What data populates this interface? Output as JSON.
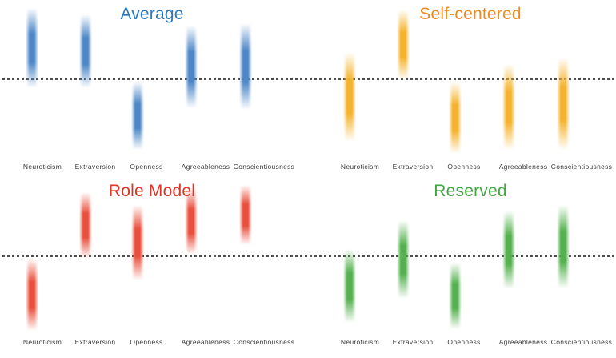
{
  "figure": {
    "background": "#ffffff",
    "baseline_line": {
      "style": "dotted",
      "color": "#4f4f4f",
      "value": 0
    },
    "traits": [
      "Neuroticism",
      "Extraversion",
      "Openness",
      "Agreeableness",
      "Conscientiousness"
    ]
  },
  "chart_data": [
    {
      "type": "bar",
      "title": "Average",
      "title_color": "#2b7abf",
      "bar_color": "#4d87c7",
      "categories": [
        "Neuroticism",
        "Extraversion",
        "Openness",
        "Agreeableness",
        "Conscientiousness"
      ],
      "series": [
        {
          "name": "trait-range",
          "intervals": [
            {
              "top": 89,
              "bottom": -11
            },
            {
              "top": 81,
              "bottom": -11
            },
            {
              "top": -3,
              "bottom": -88
            },
            {
              "top": 67,
              "bottom": -36
            },
            {
              "top": 70,
              "bottom": -38
            }
          ]
        }
      ],
      "ylim": [
        -100,
        100
      ],
      "baseline_value": 0,
      "grid": false,
      "legend": false
    },
    {
      "type": "bar",
      "title": "Self-centered",
      "title_color": "#ef8b22",
      "bar_color": "#f5b32d",
      "categories": [
        "Neuroticism",
        "Extraversion",
        "Openness",
        "Agreeableness",
        "Conscientiousness"
      ],
      "series": [
        {
          "name": "trait-range",
          "intervals": [
            {
              "top": 34,
              "bottom": -78
            },
            {
              "top": 87,
              "bottom": -1
            },
            {
              "top": -3,
              "bottom": -93
            },
            {
              "top": 19,
              "bottom": -88
            },
            {
              "top": 27,
              "bottom": -88
            }
          ]
        }
      ],
      "ylim": [
        -100,
        100
      ],
      "baseline_value": 0,
      "grid": false,
      "legend": false
    },
    {
      "type": "bar",
      "title": "Role Model",
      "title_color": "#e23327",
      "bar_color": "#e94f3d",
      "categories": [
        "Neuroticism",
        "Extraversion",
        "Openness",
        "Agreeableness",
        "Conscientiousness"
      ],
      "series": [
        {
          "name": "trait-range",
          "intervals": [
            {
              "top": -3,
              "bottom": -93
            },
            {
              "top": 80,
              "bottom": -3
            },
            {
              "top": 64,
              "bottom": -30
            },
            {
              "top": 85,
              "bottom": 2
            },
            {
              "top": 89,
              "bottom": 14
            }
          ]
        }
      ],
      "ylim": [
        -100,
        100
      ],
      "baseline_value": 0,
      "grid": false,
      "legend": false
    },
    {
      "type": "bar",
      "title": "Reserved",
      "title_color": "#41a644",
      "bar_color": "#55b14f",
      "categories": [
        "Neuroticism",
        "Extraversion",
        "Openness",
        "Agreeableness",
        "Conscientiousness"
      ],
      "series": [
        {
          "name": "trait-range",
          "intervals": [
            {
              "top": 9,
              "bottom": -83
            },
            {
              "top": 45,
              "bottom": -53
            },
            {
              "top": -8,
              "bottom": -91
            },
            {
              "top": 57,
              "bottom": -41
            },
            {
              "top": 64,
              "bottom": -40
            }
          ]
        }
      ],
      "ylim": [
        -100,
        100
      ],
      "baseline_value": 0,
      "grid": false,
      "legend": false
    }
  ]
}
